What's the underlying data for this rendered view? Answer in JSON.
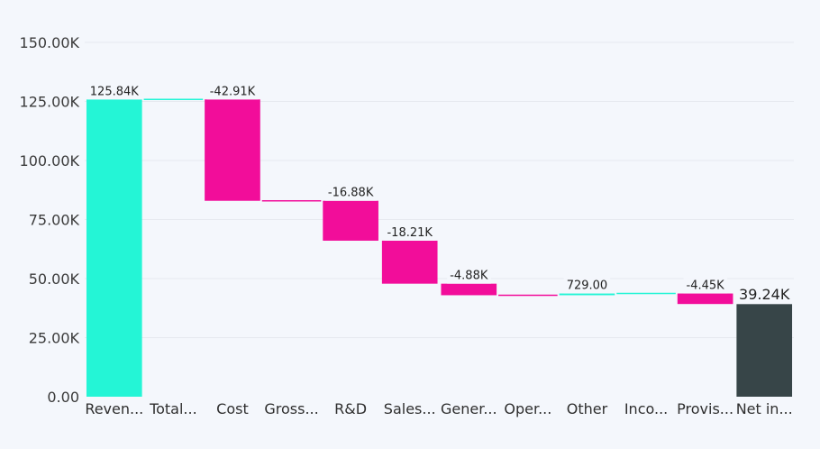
{
  "chart_data": {
    "type": "bar",
    "subtype": "waterfall",
    "title": "",
    "xlabel": "",
    "ylabel": "",
    "ylim": [
      0,
      150000
    ],
    "y_ticks": [
      0,
      25000,
      50000,
      75000,
      100000,
      125000,
      150000
    ],
    "y_tick_labels": [
      "0.00",
      "25.00K",
      "50.00K",
      "75.00K",
      "100.00K",
      "125.00K",
      "150.00K"
    ],
    "grid": true,
    "legend": "none",
    "categories": [
      "Reven...",
      "Total...",
      "Cost",
      "Gross...",
      "R&D",
      "Sales...",
      "Gener...",
      "Oper...",
      "Other",
      "Inco...",
      "Provis...",
      "Net in..."
    ],
    "values": [
      125840,
      0,
      -42910,
      0,
      -16880,
      -18210,
      -4880,
      0,
      729,
      0,
      -4450,
      39240
    ],
    "kinds": [
      "increase",
      "subtotal",
      "decrease",
      "subtotal",
      "decrease",
      "decrease",
      "decrease",
      "subtotal",
      "increase",
      "subtotal",
      "decrease",
      "total"
    ],
    "data_labels": [
      "125.84K",
      "",
      "-42.91K",
      "",
      "-16.88K",
      "-18.21K",
      "-4.88K",
      "",
      "729.00",
      "",
      "-4.45K",
      "39.24K"
    ],
    "colors": {
      "increase": "#24f5d6",
      "decrease": "#f20d9a",
      "total": "#374548",
      "grid": "#e6e9ef"
    }
  }
}
